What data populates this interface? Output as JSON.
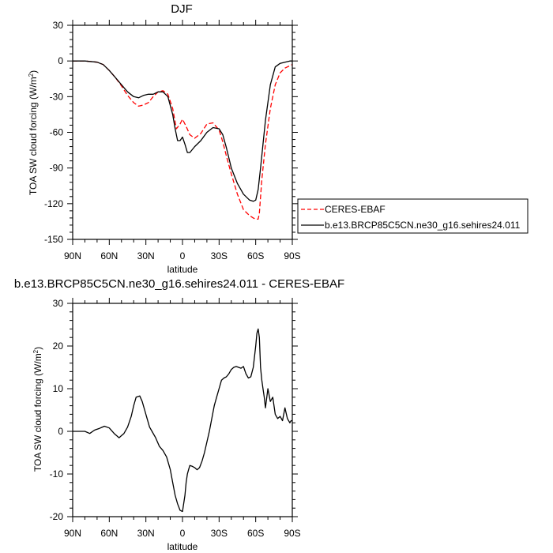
{
  "chart_data": [
    {
      "type": "line",
      "title": "DJF",
      "xlabel": "latitude",
      "ylabel_main": "TOA SW cloud forcing (W/m",
      "ylabel_sup": "2",
      "ylabel_close": ")",
      "xlim": [
        -90,
        90
      ],
      "ylim": [
        -150,
        30
      ],
      "xticks": [
        -90,
        -60,
        -30,
        0,
        30,
        60,
        90
      ],
      "xticklabels": [
        "90N",
        "60N",
        "30N",
        "0",
        "30S",
        "60S",
        "90S"
      ],
      "yticks": [
        -150,
        -120,
        -90,
        -60,
        -30,
        0,
        30
      ],
      "yticklabels": [
        "-150",
        "-120",
        "-90",
        "-60",
        "-30",
        "0",
        "30"
      ],
      "grid": false,
      "legend_position": "outside-right",
      "series": [
        {
          "name": "CERES-EBAF",
          "color": "#ff0000",
          "dash": "dashed",
          "x": [
            -90,
            -80,
            -70,
            -65,
            -60,
            -55,
            -50,
            -45,
            -40,
            -36,
            -32,
            -28,
            -24,
            -20,
            -16,
            -12,
            -8,
            -5,
            -2,
            0,
            3,
            6,
            10,
            15,
            20,
            25,
            30,
            33,
            36,
            40,
            45,
            50,
            55,
            58,
            60,
            62,
            63,
            65,
            68,
            72,
            76,
            80,
            84,
            88,
            90
          ],
          "y": [
            0,
            0,
            -1,
            -3,
            -8,
            -14,
            -21,
            -29,
            -35,
            -38,
            -37,
            -35,
            -30,
            -26,
            -25,
            -28,
            -40,
            -57,
            -53,
            -49,
            -55,
            -62,
            -65,
            -61,
            -53,
            -52,
            -58,
            -68,
            -80,
            -95,
            -112,
            -125,
            -130,
            -132,
            -133,
            -133,
            -128,
            -100,
            -70,
            -40,
            -20,
            -10,
            -6,
            -4,
            -3
          ]
        },
        {
          "name": "b.e13.BRCP85C5CN.ne30_g16.sehires24.011",
          "color": "#000000",
          "dash": "solid",
          "x": [
            -90,
            -80,
            -70,
            -65,
            -60,
            -55,
            -50,
            -45,
            -40,
            -36,
            -32,
            -28,
            -24,
            -20,
            -16,
            -12,
            -8,
            -6,
            -4,
            -2,
            0,
            2,
            4,
            6,
            10,
            15,
            20,
            25,
            30,
            33,
            36,
            40,
            45,
            50,
            55,
            58,
            60,
            62,
            64,
            68,
            72,
            76,
            80,
            84,
            88,
            90
          ],
          "y": [
            0,
            0,
            -1,
            -3,
            -8,
            -14,
            -20,
            -26,
            -30,
            -31,
            -29,
            -28,
            -28,
            -26,
            -26,
            -30,
            -45,
            -57,
            -67,
            -67,
            -64,
            -70,
            -77,
            -77,
            -72,
            -67,
            -60,
            -56,
            -57,
            -62,
            -73,
            -90,
            -103,
            -112,
            -117,
            -118,
            -117,
            -108,
            -90,
            -50,
            -20,
            -5,
            -2,
            -1,
            0,
            0
          ]
        }
      ]
    },
    {
      "type": "line",
      "title": "b.e13.BRCP85C5CN.ne30_g16.sehires24.011 - CERES-EBAF",
      "xlabel": "latitude",
      "ylabel_main": "TOA SW cloud forcing (W/m",
      "ylabel_sup": "2",
      "ylabel_close": ")",
      "xlim": [
        -90,
        90
      ],
      "ylim": [
        -20,
        30
      ],
      "xticks": [
        -90,
        -60,
        -30,
        0,
        30,
        60,
        90
      ],
      "xticklabels": [
        "90N",
        "60N",
        "30N",
        "0",
        "30S",
        "60S",
        "90S"
      ],
      "yticks": [
        -20,
        -10,
        0,
        10,
        20,
        30
      ],
      "yticklabels": [
        "-20",
        "-10",
        "0",
        "10",
        "20",
        "30"
      ],
      "grid": false,
      "series": [
        {
          "color": "#000000",
          "dash": "solid",
          "x": [
            -90,
            -80,
            -76,
            -72,
            -68,
            -64,
            -60,
            -56,
            -52,
            -50,
            -48,
            -45,
            -42,
            -40,
            -38,
            -35,
            -33,
            -31,
            -29,
            -27,
            -25,
            -22,
            -19,
            -16,
            -13,
            -10,
            -8,
            -6,
            -4,
            -2,
            0,
            2,
            3,
            4,
            5,
            6,
            8,
            10,
            12,
            14,
            16,
            18,
            20,
            22,
            24,
            26,
            28,
            30,
            32,
            34,
            36,
            38,
            40,
            42,
            44,
            46,
            48,
            50,
            52,
            54,
            56,
            58,
            60,
            61,
            62,
            63,
            64,
            65,
            66,
            67,
            68,
            70,
            72,
            74,
            76,
            78,
            80,
            82,
            84,
            86,
            88,
            89,
            90
          ],
          "y": [
            0,
            0,
            -0.5,
            0.3,
            0.7,
            1.2,
            0.8,
            -0.5,
            -1.5,
            -1,
            -0.5,
            1,
            3.5,
            6,
            8,
            8.3,
            7,
            5,
            3,
            1,
            0,
            -1.5,
            -3.5,
            -4.5,
            -6,
            -9,
            -12,
            -15,
            -17,
            -18.5,
            -18.8,
            -15,
            -12,
            -10,
            -9,
            -8,
            -8.2,
            -8.5,
            -9,
            -8.5,
            -7,
            -5,
            -2.5,
            0,
            3,
            6,
            8,
            10,
            12,
            12.5,
            12.8,
            13.5,
            14.5,
            15,
            15.2,
            15,
            14.8,
            15.2,
            13.5,
            12.5,
            12.8,
            15,
            20,
            23,
            24,
            22,
            15,
            12,
            10,
            8,
            5.5,
            10,
            7,
            8,
            4,
            3,
            3.5,
            2.5,
            5.5,
            3,
            2,
            2.5,
            2.5
          ]
        }
      ]
    }
  ]
}
